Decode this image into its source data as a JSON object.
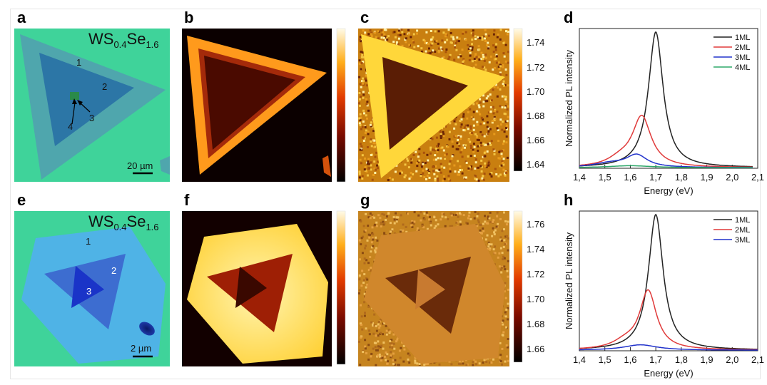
{
  "panels": {
    "a": {
      "label": "a",
      "formula": {
        "base": "WS",
        "s1": "0.4",
        "mid": "Se",
        "s2": "1.6"
      },
      "regions": [
        "1",
        "2",
        "3",
        "4"
      ],
      "scalebar": "20 µm"
    },
    "b": {
      "label": "b"
    },
    "c": {
      "label": "c",
      "colorbar_ticks": [
        "1.74",
        "1.72",
        "1.70",
        "1.68",
        "1.66",
        "1.64"
      ]
    },
    "e": {
      "label": "e",
      "formula": {
        "base": "WS",
        "s1": "0.4",
        "mid": "Se",
        "s2": "1.6"
      },
      "regions": [
        "1",
        "2",
        "3"
      ],
      "scalebar": "2 µm"
    },
    "f": {
      "label": "f"
    },
    "g": {
      "label": "g",
      "colorbar_ticks": [
        "1.76",
        "1.74",
        "1.72",
        "1.70",
        "1.68",
        "1.66"
      ]
    }
  },
  "colors": {
    "1ML": "#222222",
    "2ML": "#e03a3a",
    "3ML": "#2233cc",
    "4ML": "#2ea86a",
    "substrate_a": "#3fd39a",
    "substrate_e": "#3fd39a"
  },
  "chart_data": [
    {
      "panel": "d",
      "label": "d",
      "type": "line",
      "xlabel": "Energy (eV)",
      "ylabel": "Normalized PL intensity",
      "xlim": [
        1.4,
        2.1
      ],
      "ylim": [
        0,
        1.03
      ],
      "xticks": [
        "1,4",
        "1,5",
        "1,6",
        "1,7",
        "1,8",
        "1,9",
        "2,0",
        "2,1"
      ],
      "series": [
        {
          "name": "1ML",
          "peaks": [
            {
              "center": 1.7,
              "amp": 1.0,
              "width": 0.035
            }
          ],
          "range": [
            1.4,
            2.08
          ]
        },
        {
          "name": "2ML",
          "peaks": [
            {
              "center": 1.645,
              "amp": 0.37,
              "width": 0.045
            },
            {
              "center": 1.56,
              "amp": 0.05,
              "width": 0.06
            }
          ],
          "range": [
            1.4,
            2.08
          ]
        },
        {
          "name": "3ML",
          "peaks": [
            {
              "center": 1.625,
              "amp": 0.09,
              "width": 0.05
            },
            {
              "center": 1.52,
              "amp": 0.03,
              "width": 0.08
            }
          ],
          "range": [
            1.4,
            2.08
          ]
        },
        {
          "name": "4ML",
          "peaks": [
            {
              "center": 1.6,
              "amp": 0.015,
              "width": 0.1
            }
          ],
          "range": [
            1.4,
            2.08
          ]
        }
      ]
    },
    {
      "panel": "h",
      "label": "h",
      "type": "line",
      "xlabel": "Energy (eV)",
      "ylabel": "Normalized PL intensity",
      "xlim": [
        1.4,
        2.1
      ],
      "ylim": [
        0,
        1.03
      ],
      "xticks": [
        "1,4",
        "1,5",
        "1,6",
        "1,7",
        "1,8",
        "1,9",
        "2,0",
        "2,1"
      ],
      "series": [
        {
          "name": "1ML",
          "peaks": [
            {
              "center": 1.7,
              "amp": 1.0,
              "width": 0.035
            }
          ],
          "range": [
            1.4,
            2.1
          ]
        },
        {
          "name": "2ML",
          "peaks": [
            {
              "center": 1.67,
              "amp": 0.43,
              "width": 0.04
            },
            {
              "center": 1.58,
              "amp": 0.05,
              "width": 0.06
            }
          ],
          "range": [
            1.4,
            2.1
          ]
        },
        {
          "name": "3ML",
          "peaks": [
            {
              "center": 1.64,
              "amp": 0.04,
              "width": 0.08
            }
          ],
          "range": [
            1.4,
            2.1
          ]
        }
      ]
    }
  ]
}
